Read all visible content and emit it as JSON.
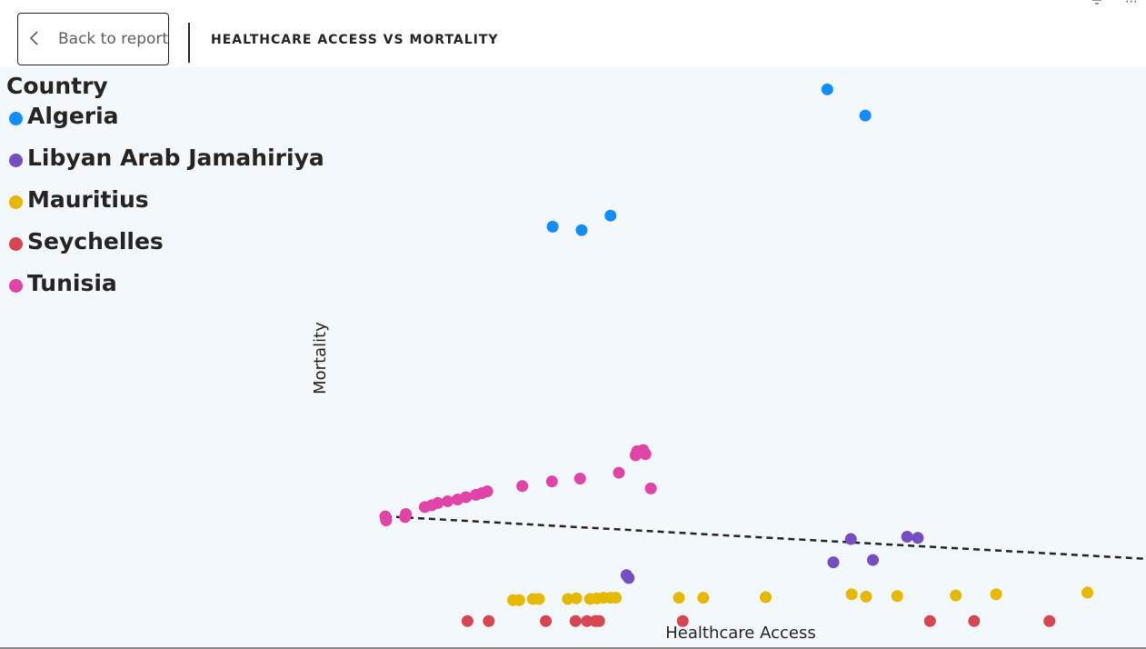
{
  "header": {
    "back_label": "Back to report",
    "title": "HEALTHCARE ACCESS VS MORTALITY"
  },
  "icons": {
    "back": "chevron-left-icon",
    "filter": "filter-icon",
    "more": "more-options-icon"
  },
  "chart_data": {
    "type": "scatter",
    "title": "HEALTHCARE ACCESS VS MORTALITY",
    "xlabel": "Healthcare Access",
    "ylabel": "Mortality",
    "xlim": [
      0,
      1
    ],
    "ylim": [
      0,
      1
    ],
    "grid": false,
    "legend": {
      "title": "Country",
      "position": "top-left"
    },
    "series": [
      {
        "name": "Algeria",
        "color": "#118DFF",
        "points": [
          [
            0.581,
            0.962
          ],
          [
            0.631,
            0.917
          ],
          [
            0.22,
            0.726
          ],
          [
            0.258,
            0.72
          ],
          [
            0.296,
            0.745
          ]
        ]
      },
      {
        "name": "Libyan Arab Jamahiriya",
        "color": "#744EC2",
        "points": [
          [
            0.317,
            0.127
          ],
          [
            0.32,
            0.122
          ],
          [
            0.589,
            0.149
          ],
          [
            0.612,
            0.189
          ],
          [
            0.641,
            0.153
          ],
          [
            0.686,
            0.193
          ],
          [
            0.7,
            0.191
          ]
        ]
      },
      {
        "name": "Mauritius",
        "color": "#E6B800",
        "points": [
          [
            0.168,
            0.084
          ],
          [
            0.176,
            0.084
          ],
          [
            0.194,
            0.086
          ],
          [
            0.202,
            0.086
          ],
          [
            0.24,
            0.086
          ],
          [
            0.251,
            0.087
          ],
          [
            0.269,
            0.086
          ],
          [
            0.278,
            0.087
          ],
          [
            0.287,
            0.088
          ],
          [
            0.296,
            0.088
          ],
          [
            0.303,
            0.088
          ],
          [
            0.386,
            0.088
          ],
          [
            0.418,
            0.088
          ],
          [
            0.5,
            0.089
          ],
          [
            0.613,
            0.094
          ],
          [
            0.632,
            0.09
          ],
          [
            0.673,
            0.091
          ],
          [
            0.75,
            0.092
          ],
          [
            0.803,
            0.094
          ],
          [
            0.923,
            0.097
          ]
        ]
      },
      {
        "name": "Seychelles",
        "color": "#D64550",
        "points": [
          [
            0.108,
            0.048
          ],
          [
            0.136,
            0.048
          ],
          [
            0.211,
            0.048
          ],
          [
            0.25,
            0.048
          ],
          [
            0.265,
            0.048
          ],
          [
            0.276,
            0.048
          ],
          [
            0.281,
            0.048
          ],
          [
            0.391,
            0.048
          ],
          [
            0.716,
            0.048
          ],
          [
            0.774,
            0.048
          ],
          [
            0.873,
            0.048
          ]
        ]
      },
      {
        "name": "Tunisia",
        "color": "#E044A7",
        "points": [
          [
            0.0,
            0.228
          ],
          [
            0.001,
            0.221
          ],
          [
            0.027,
            0.232
          ],
          [
            0.026,
            0.227
          ],
          [
            0.052,
            0.244
          ],
          [
            0.061,
            0.247
          ],
          [
            0.069,
            0.251
          ],
          [
            0.082,
            0.254
          ],
          [
            0.095,
            0.257
          ],
          [
            0.106,
            0.261
          ],
          [
            0.119,
            0.265
          ],
          [
            0.127,
            0.268
          ],
          [
            0.134,
            0.271
          ],
          [
            0.18,
            0.28
          ],
          [
            0.219,
            0.288
          ],
          [
            0.256,
            0.293
          ],
          [
            0.307,
            0.303
          ],
          [
            0.329,
            0.333
          ],
          [
            0.331,
            0.34
          ],
          [
            0.339,
            0.342
          ],
          [
            0.342,
            0.335
          ],
          [
            0.349,
            0.276
          ]
        ]
      }
    ],
    "trendline": {
      "style": "dashed",
      "color": "#252423",
      "points": [
        [
          0.0,
          0.228
        ],
        [
          1.0,
          0.155
        ]
      ]
    }
  }
}
